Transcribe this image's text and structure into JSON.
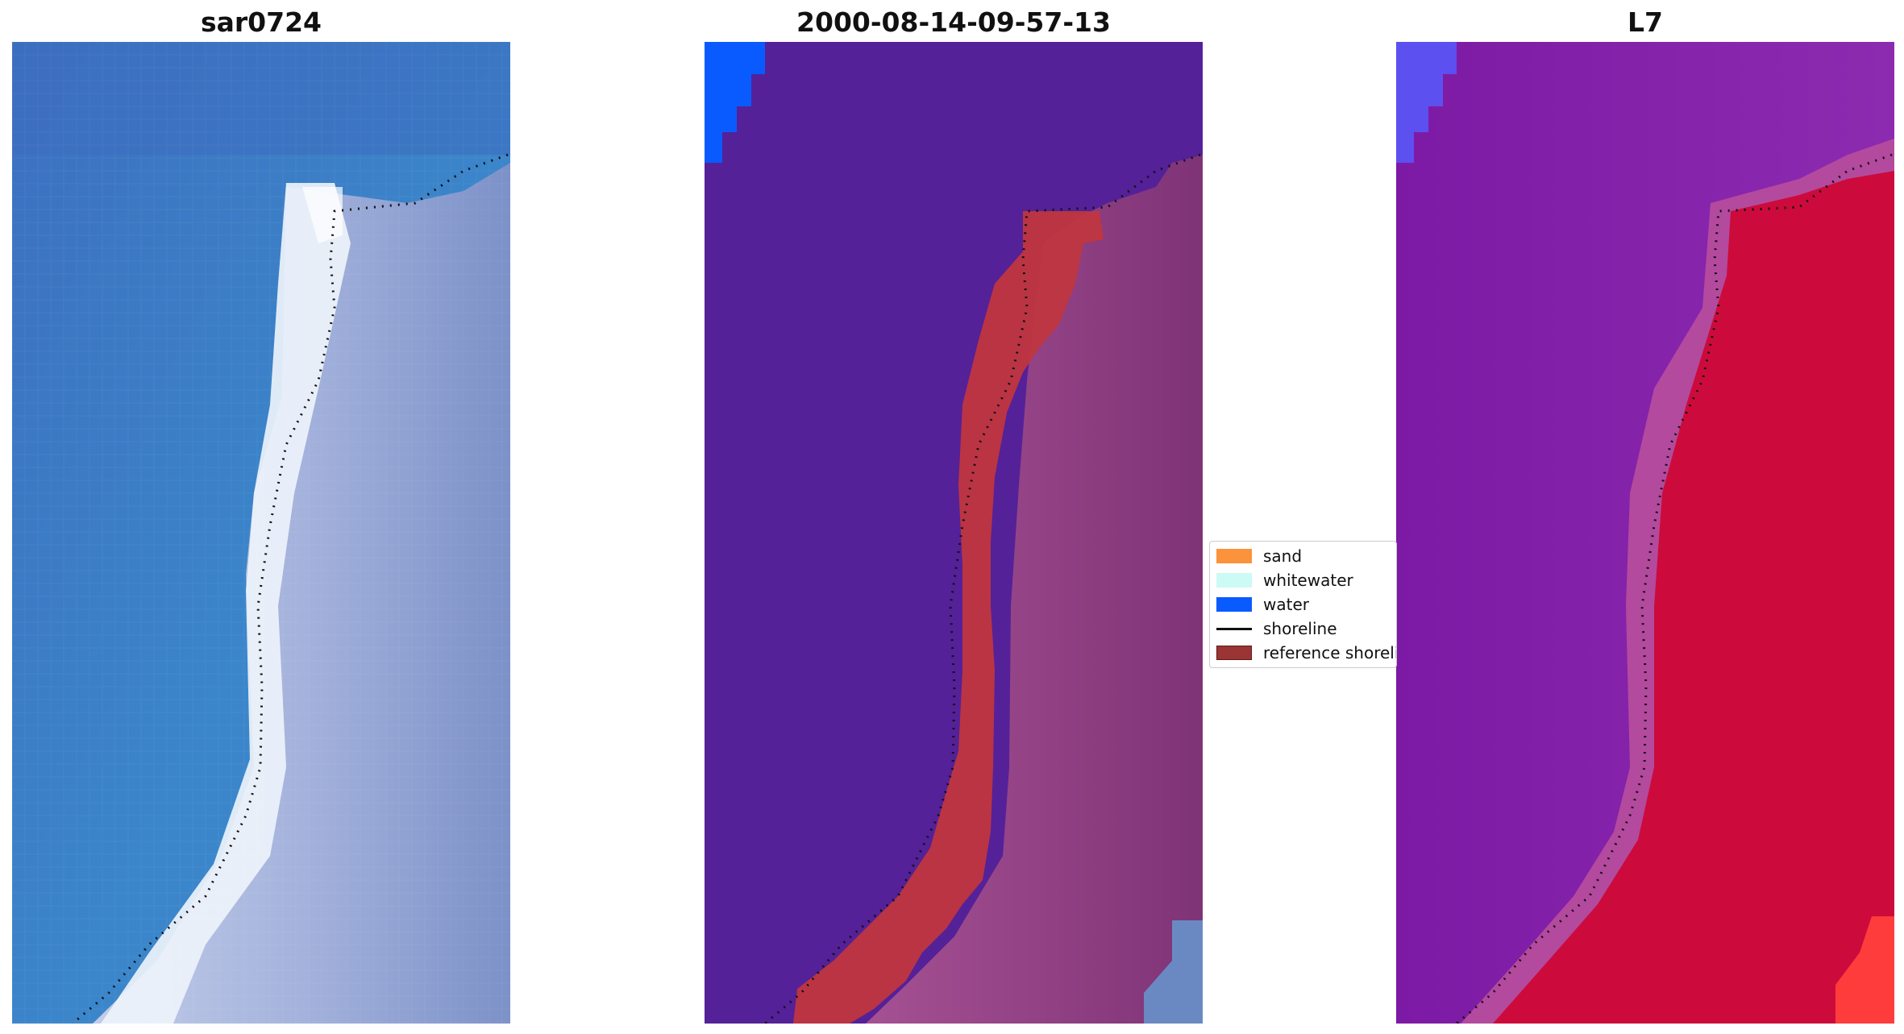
{
  "panels": [
    {
      "title": "sar0724"
    },
    {
      "title": "2000-08-14-09-57-13"
    },
    {
      "title": "L7"
    }
  ],
  "legend": {
    "items": [
      {
        "label": "sand",
        "color": "#fb923c",
        "kind": "patch"
      },
      {
        "label": "whitewater",
        "color": "#ccfbf6",
        "kind": "patch"
      },
      {
        "label": "water",
        "color": "#0a5bff",
        "kind": "patch"
      },
      {
        "label": "shoreline",
        "color": "#111111",
        "kind": "line"
      },
      {
        "label": "reference shoreline",
        "color": "#9b3434",
        "kind": "patch"
      }
    ]
  }
}
